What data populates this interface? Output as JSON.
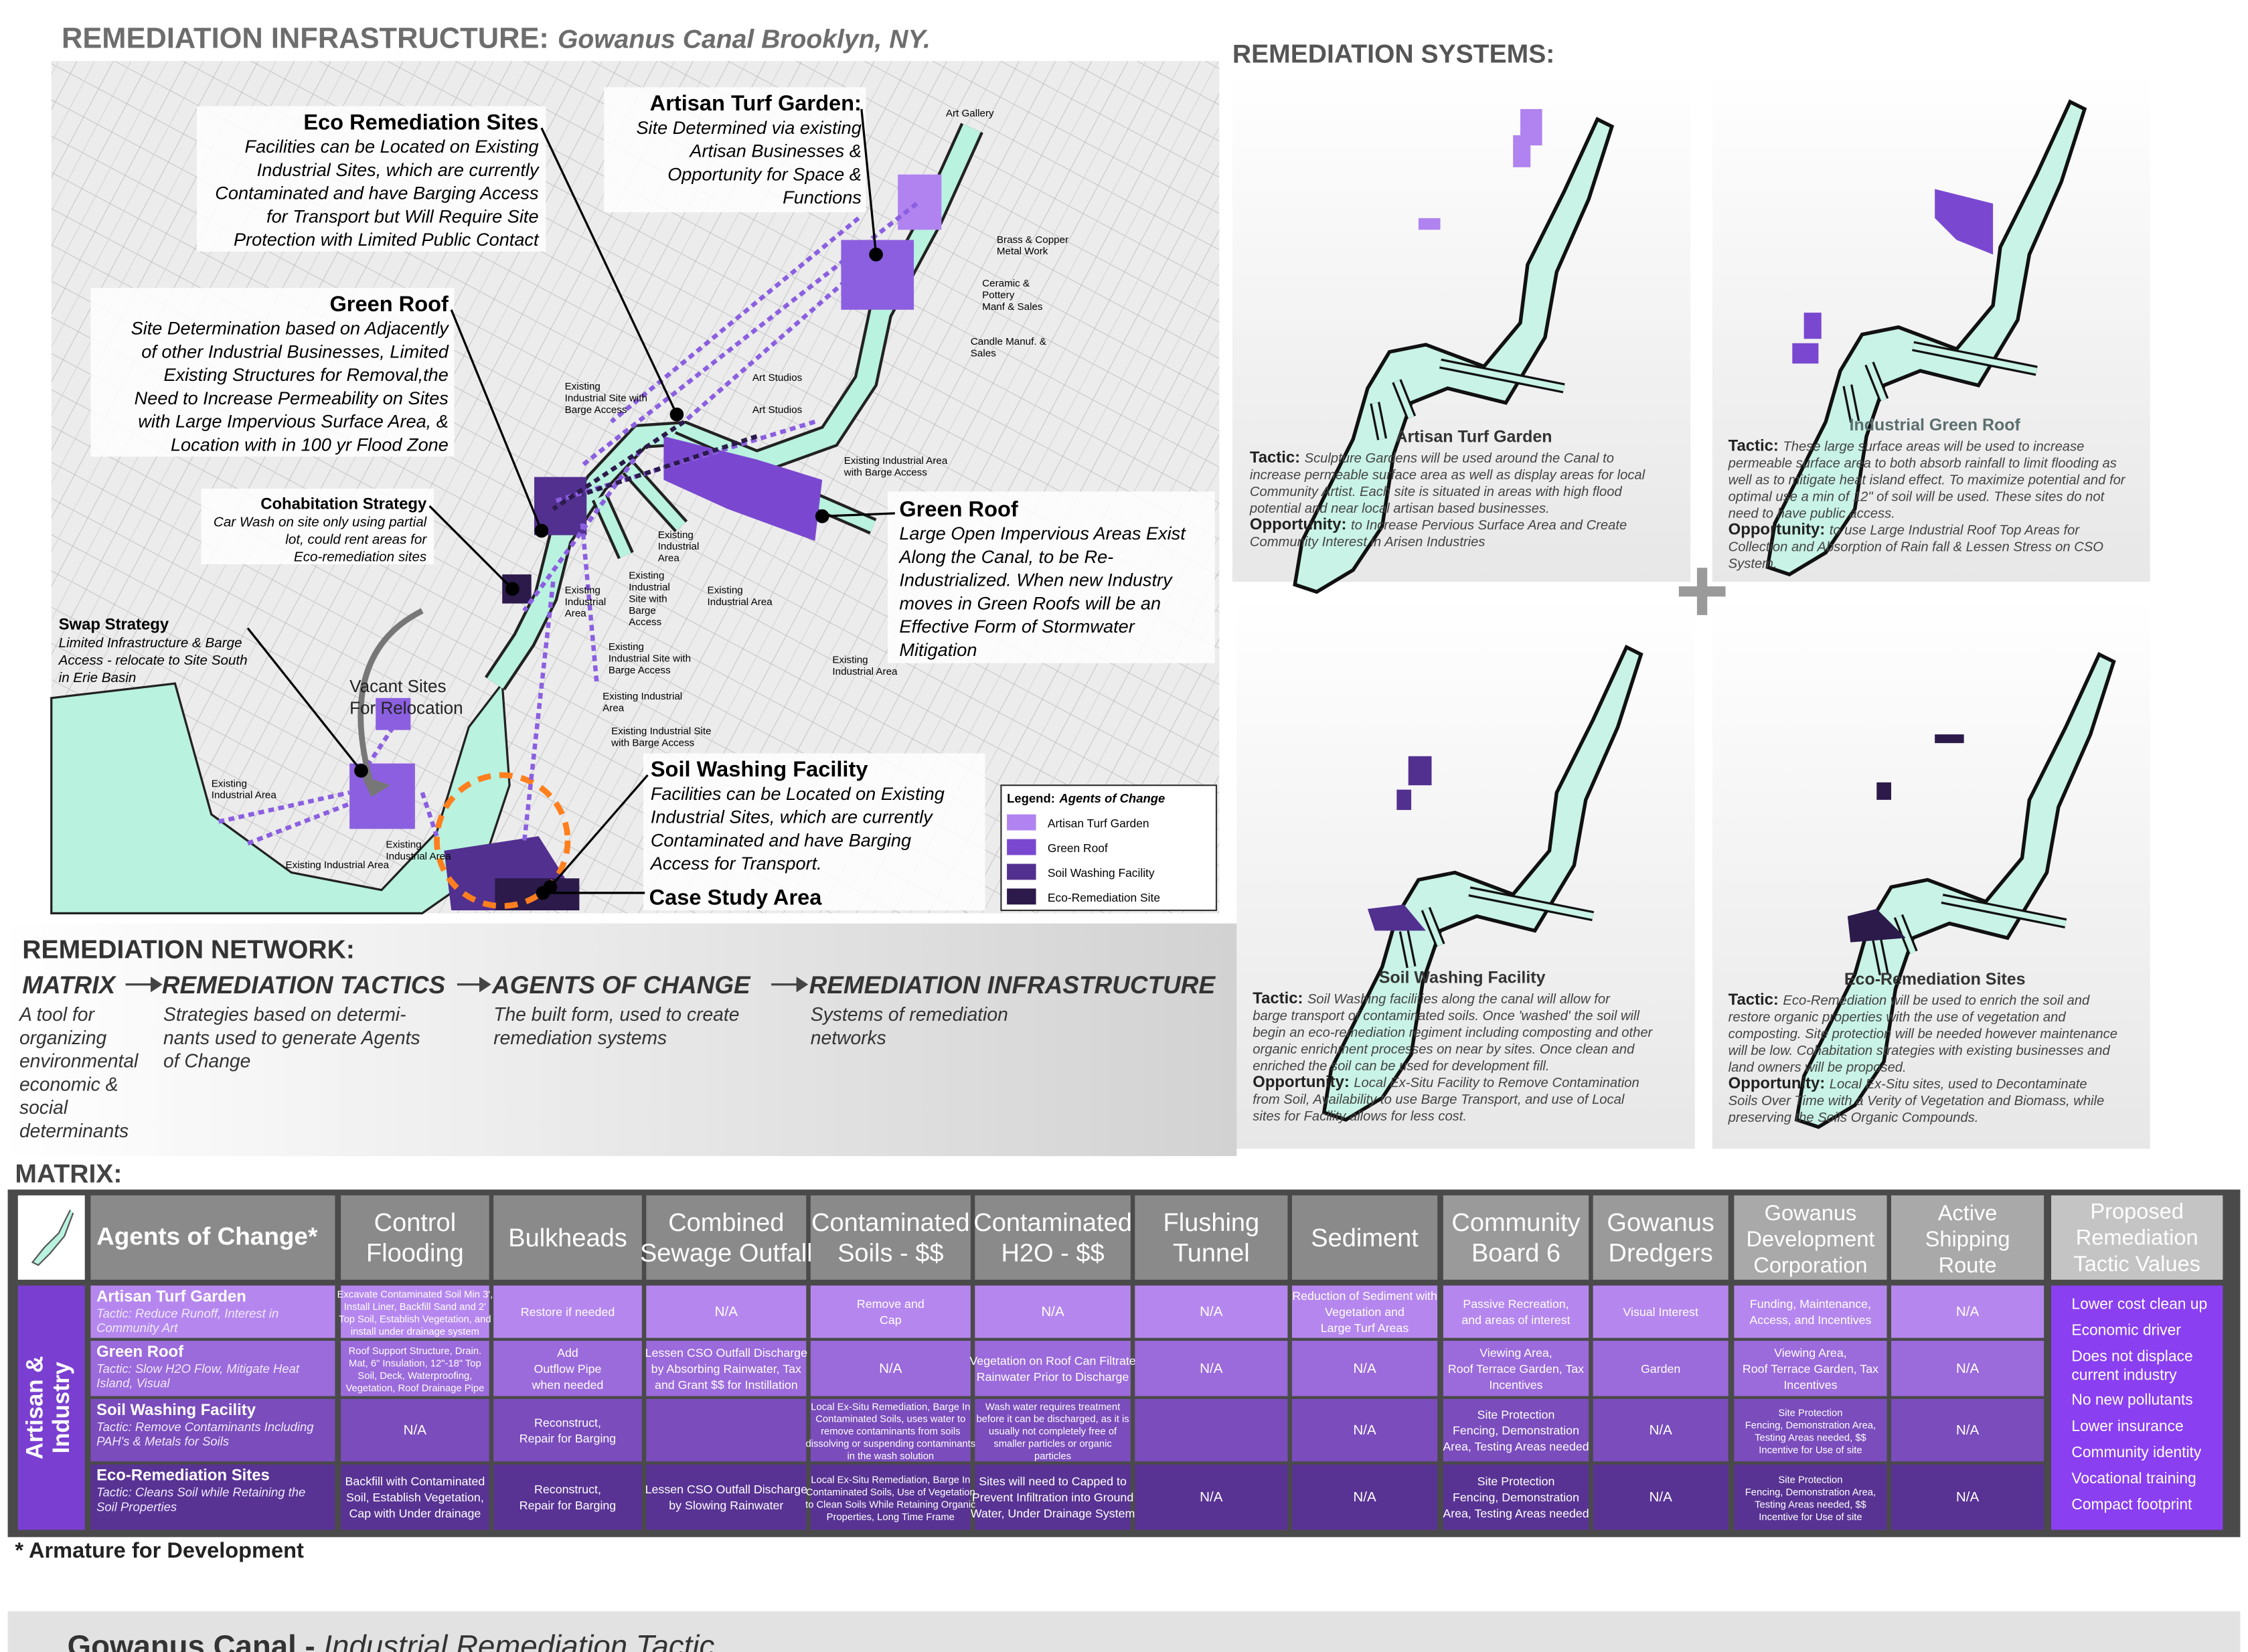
{
  "header": {
    "title": "REMEDIATION INFRASTRUCTURE:",
    "subtitle": "Gowanus Canal Brooklyn, NY."
  },
  "map": {
    "callouts": [
      {
        "title": "Eco Remediation Sites",
        "lines": [
          "Facilities can be Located on Existing",
          "Industrial Sites, which are currently",
          "Contaminated and have Barging Access",
          "for Transport but Will Require Site",
          "Protection with Limited Public Contact"
        ]
      },
      {
        "title": "Artisan Turf Garden:",
        "lines": [
          "Site Determined via existing",
          "Artisan Businesses &",
          "Opportunity for Space &",
          "Functions"
        ]
      },
      {
        "title": "Green Roof",
        "lines": [
          "Site Determination based on Adjacently",
          "of other Industrial Businesses, Limited",
          "Existing Structures for Removal,the",
          "Need to Increase Permeability on Sites",
          "with Large Impervious Surface Area, &",
          "Location with in 100 yr Flood Zone"
        ]
      },
      {
        "title": "Cohabitation Strategy",
        "lines": [
          "Car Wash on site only using partial",
          "lot, could rent areas for",
          "Eco-remediation sites"
        ]
      },
      {
        "title": "Swap Strategy",
        "lines": [
          "Limited Infrastructure & Barge",
          "Access - relocate to Site South",
          "in Erie Basin"
        ]
      },
      {
        "title": "Green Roof",
        "lines": [
          "Large Open Impervious Areas Exist",
          "Along the Canal, to be Re-",
          "Industrialized. When new Industry",
          "moves in Green Roofs will be an",
          "Effective Form of Stormwater",
          "Mitigation"
        ]
      },
      {
        "title": "Soil Washing Facility",
        "lines": [
          "Facilities can be Located on Existing",
          "Industrial Sites, which are currently",
          "Contaminated and have Barging",
          "Access for Transport."
        ]
      },
      {
        "title": "Case Study Area",
        "lines": []
      }
    ],
    "vacant": [
      "Vacant Sites",
      "For Relocation"
    ],
    "labels": [
      [
        "Art Gallery"
      ],
      [
        "Brass & Copper",
        "Metal Work"
      ],
      [
        "Ceramic &",
        "Pottery",
        "Manf & Sales"
      ],
      [
        "Candle Manuf. &",
        "Sales"
      ],
      [
        "Art Studios"
      ],
      [
        "Art Studios"
      ],
      [
        "Existing",
        "Industrial Site with",
        "Barge Access"
      ],
      [
        "Existing Industrial Area",
        "with Barge Access"
      ],
      [
        "Existing",
        "Industrial",
        "Area"
      ],
      [
        "Existing",
        "Industrial",
        "Site with",
        "Barge",
        "Access"
      ],
      [
        "Existing",
        "Industrial",
        "Area"
      ],
      [
        "Existing",
        "Industrial Area"
      ],
      [
        "Existing",
        "Industrial Site with",
        "Barge Access"
      ],
      [
        "Existing Industrial",
        "Area"
      ],
      [
        "Existing Industrial Site",
        "with Barge Access"
      ],
      [
        "Existing",
        "Industrial Area"
      ],
      [
        "Existing",
        "Industrial Area"
      ],
      [
        "Existing",
        "Industrial Area"
      ],
      [
        "Existing Industrial Area"
      ]
    ],
    "legend": {
      "title": "Legend:",
      "subtitle": "Agents of Change",
      "items": [
        "Artisan Turf Garden",
        "Green Roof",
        "Soil Washing Facility",
        "Eco-Remediation Site"
      ]
    }
  },
  "systems": {
    "title": "REMEDIATION SYSTEMS:",
    "plus": "+",
    "panels": [
      {
        "name": "Artisan Turf Garden",
        "tactic_label": "Tactic:",
        "tactic": [
          "Sculpture Gardens will be used around the Canal to",
          "increase permeable surface area as well as display areas for local",
          "Community Artist. Each site is situated in areas with high flood",
          "potential and near local artisan based businesses."
        ],
        "opportunity_label": "Opportunity:",
        "opportunity": [
          "to Increase Pervious Surface Area and Create",
          "Community Interest in Arisen Industries"
        ]
      },
      {
        "name": "Industrial Green Roof",
        "tactic_label": "Tactic:",
        "tactic": [
          "These large surface areas will be used to increase",
          "permeable surface area to both absorb rainfall to limit flooding as",
          "well as to mitigate heat island effect. To maximize potential and for",
          "optimal use a min of 12\" of soil will be used. These sites do not",
          "need to have public access."
        ],
        "opportunity_label": "Opportunity:",
        "opportunity": [
          "to use Large Industrial Roof Top Areas for",
          "Collection and Absorption of  Rain fall & Lessen Stress on CSO",
          "System."
        ]
      },
      {
        "name": "Soil Washing Facility",
        "tactic_label": "Tactic:",
        "tactic": [
          "Soil Washing facilities along the canal will allow for",
          "barge transport of contaminated soils. Once 'washed' the soil will",
          "begin an eco-remediation regiment including composting and other",
          "organic enrichment processes on near by sites. Once clean and",
          "enriched  the soil can be used for development fill."
        ],
        "opportunity_label": "Opportunity:",
        "opportunity": [
          "Local Ex-Situ Facility to Remove Contamination",
          "from Soil, Availability to use Barge Transport, and  use of Local",
          "sites for Facility allows for less cost."
        ]
      },
      {
        "name": "Eco-Remediation Sites",
        "tactic_label": "Tactic:",
        "tactic": [
          "Eco-Remediation will be used to enrich the soil and",
          "restore organic properties with the use of vegetation and",
          "composting.  Site protection will be needed however maintenance",
          "will be low. Cohabitation strategies with existing businesses and",
          "land owners will be proposed."
        ],
        "opportunity_label": "Opportunity:",
        "opportunity": [
          "Local Ex-Situ sites, used to Decontaminate",
          "Soils Over Time with a Verity of Vegetation and Biomass, while",
          "preserving the Soils Organic Compounds."
        ]
      }
    ]
  },
  "network": {
    "title": "REMEDIATION NETWORK:",
    "steps": [
      {
        "name": "MATRIX",
        "description": [
          "A tool for",
          "organizing",
          "environmental",
          "economic &",
          "social",
          "determinants"
        ]
      },
      {
        "name": "REMEDIATION TACTICS",
        "description": [
          "Strategies based on determi-",
          "nants used to generate Agents",
          "of Change"
        ]
      },
      {
        "name": "AGENTS OF CHANGE",
        "description": [
          "The built form, used to create",
          "remediation systems"
        ]
      },
      {
        "name": "REMEDIATION INFRASTRUCTURE",
        "description": [
          "Systems of remediation",
          "networks"
        ]
      }
    ]
  },
  "matrix": {
    "title": "MATRIX:",
    "agents_header": "Agents of Change*",
    "side_label": [
      "Artisan &",
      "Industry"
    ],
    "columns": [
      [
        "Control",
        "Flooding"
      ],
      [
        "Bulkheads"
      ],
      [
        "Combined",
        "Sewage Outfall"
      ],
      [
        "Contaminated",
        "Soils - $$"
      ],
      [
        "Contaminated",
        "H2O - $$"
      ],
      [
        "Flushing",
        "Tunnel"
      ],
      [
        "Sediment"
      ],
      [
        "Community",
        "Board 6"
      ],
      [
        "Gowanus",
        "Dredgers"
      ],
      [
        "Gowanus",
        "Development",
        "Corporation"
      ],
      [
        "Active",
        "Shipping",
        "Route"
      ]
    ],
    "rows": [
      {
        "name": "Artisan Turf  Garden",
        "tactic": [
          "Tactic: Reduce Runoff, Interest in",
          "Community Art"
        ],
        "cells": [
          [
            "Excavate Contaminated Soil Min 3',",
            "Install Liner, Backfill Sand and 2'",
            "Top Soil, Establish Vegetation, and",
            "install under drainage system"
          ],
          [
            "Restore if needed"
          ],
          [
            "N/A"
          ],
          [
            "Remove and",
            "Cap"
          ],
          [
            "N/A"
          ],
          [
            "N/A"
          ],
          [
            "Reduction of Sediment  with",
            "Vegetation and",
            "Large Turf Areas"
          ],
          [
            "Passive Recreation,",
            "and areas of interest"
          ],
          [
            "Visual Interest"
          ],
          [
            "Funding, Maintenance,",
            "Access, and Incentives"
          ],
          [
            "N/A"
          ]
        ]
      },
      {
        "name": "Green Roof",
        "tactic": [
          "Tactic: Slow H2O Flow, Mitigate Heat",
          "Island, Visual"
        ],
        "cells": [
          [
            "Roof Support Structure, Drain.",
            "Mat, 6\" Insulation, 12\"-18\" Top",
            "Soil, Deck, Waterproofing,",
            "Vegetation, Roof Drainage Pipe"
          ],
          [
            "Add",
            "Outflow Pipe",
            "when needed"
          ],
          [
            "Lessen CSO Outfall Discharge",
            "by Absorbing Rainwater, Tax",
            "and Grant $$ for Instillation"
          ],
          [
            "N/A"
          ],
          [
            "Vegetation on Roof Can Filtrate",
            "Rainwater Prior to Discharge"
          ],
          [
            "N/A"
          ],
          [
            "N/A"
          ],
          [
            "Viewing Area,",
            "Roof Terrace Garden, Tax",
            "Incentives"
          ],
          [
            "Garden"
          ],
          [
            "Viewing Area,",
            "Roof Terrace Garden, Tax",
            "Incentives"
          ],
          [
            "N/A"
          ]
        ]
      },
      {
        "name": "Soil Washing Facility",
        "tactic": [
          "Tactic: Remove Contaminants Including",
          "PAH's & Metals for Soils"
        ],
        "cells": [
          [
            "N/A"
          ],
          [
            "Reconstruct,",
            "Repair for Barging"
          ],
          null,
          [
            "Local Ex-Situ Remediation, Barge In",
            "Contaminated Soils, uses water to",
            "remove  contaminants from soils",
            "dissolving or suspending contaminants",
            "in the wash solution"
          ],
          [
            "Wash water requires treatment",
            "before it can be discharged, as it is",
            "usually not completely free of",
            "smaller particles or organic",
            "particles"
          ],
          null,
          [
            "N/A"
          ],
          [
            "Site Protection",
            "Fencing, Demonstration",
            "Area, Testing Areas needed"
          ],
          [
            "N/A"
          ],
          [
            "Site Protection",
            "Fencing, Demonstration Area,",
            "Testing Areas needed, $$",
            "Incentive for Use of site"
          ],
          [
            "N/A"
          ]
        ]
      },
      {
        "name": "Eco-Remediation Sites",
        "tactic": [
          "Tactic: Cleans Soil while Retaining the",
          "Soil Properties"
        ],
        "cells": [
          [
            "Backfill with Contaminated",
            "Soil, Establish Vegetation,",
            "Cap with Under drainage"
          ],
          [
            "Reconstruct,",
            "Repair for Barging"
          ],
          [
            "Lessen CSO Outfall Discharge",
            "by Slowing Rainwater"
          ],
          [
            "Local Ex-Situ Remediation, Barge In",
            "Contaminated Soils, Use of Vegetation",
            "to Clean Soils While Retaining Organic",
            "Properties, Long Time Frame"
          ],
          [
            "Sites will need to Capped to",
            "Prevent Infiltration into Ground",
            "Water, Under Drainage System"
          ],
          [
            "N/A"
          ],
          [
            "N/A"
          ],
          [
            "Site Protection",
            "Fencing, Demonstration",
            "Area, Testing Areas needed"
          ],
          [
            "N/A"
          ],
          [
            "Site Protection",
            "Fencing, Demonstration Area,",
            "Testing Areas needed, $$",
            "Incentive for Use of site"
          ],
          [
            "N/A"
          ]
        ]
      }
    ],
    "values_header": [
      "Proposed",
      "Remediation",
      "Tactic Values"
    ],
    "values": [
      [
        "Lower cost clean up"
      ],
      [
        "Economic driver"
      ],
      [
        "Does not displace",
        "current industry"
      ],
      [
        "No new pollutants"
      ],
      [
        "Lower insurance"
      ],
      [
        "Community identity"
      ],
      [
        "Vocational training"
      ],
      [
        "Compact footprint"
      ]
    ],
    "footnote": "* Armature for Development"
  },
  "footer": {
    "title": "Gowanus Canal",
    "separator": " - ",
    "subtitle": "Industrial Remediation Tactic"
  }
}
